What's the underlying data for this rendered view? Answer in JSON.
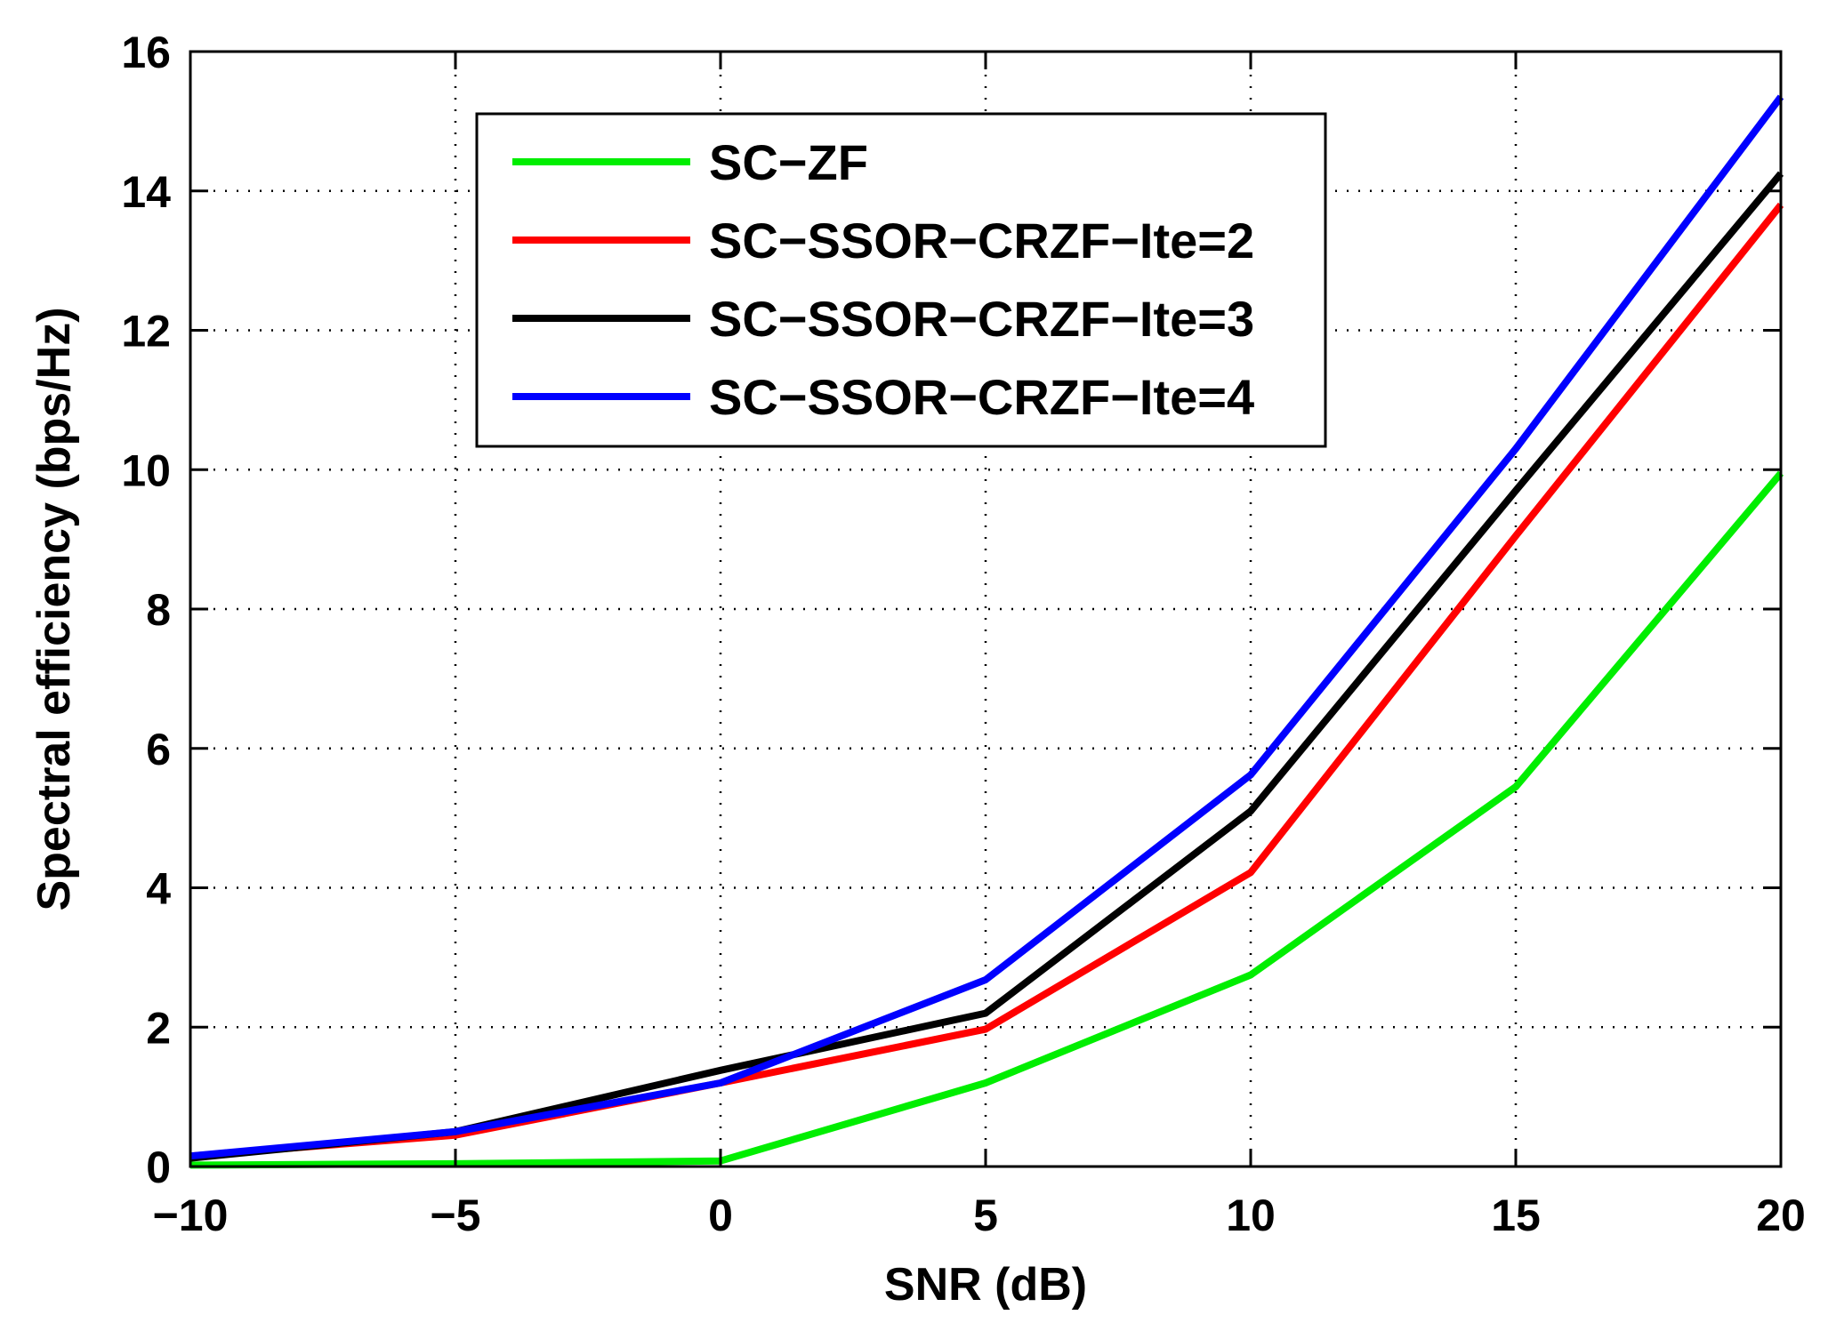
{
  "chart_data": {
    "type": "line",
    "title": "",
    "xlabel": "SNR (dB)",
    "ylabel": "Spectral efficiency (bps/Hz)",
    "xlim": [
      -10,
      20
    ],
    "ylim": [
      0,
      16
    ],
    "xticks": [
      -10,
      -5,
      0,
      5,
      10,
      15,
      20
    ],
    "yticks": [
      0,
      2,
      4,
      6,
      8,
      10,
      12,
      14,
      16
    ],
    "xtick_labels": [
      "−10",
      "−5",
      "0",
      "5",
      "10",
      "15",
      "20"
    ],
    "ytick_labels": [
      "0",
      "2",
      "4",
      "6",
      "8",
      "10",
      "12",
      "14",
      "16"
    ],
    "grid": true,
    "legend_position": "top-center",
    "x": [
      -10,
      -5,
      0,
      5,
      10,
      15,
      20
    ],
    "series": [
      {
        "name": "SC−ZF",
        "color": "#00ee00",
        "values": [
          0.02,
          0.04,
          0.08,
          1.2,
          2.75,
          5.45,
          9.95
        ]
      },
      {
        "name": "SC−SSOR−CRZF−Ite=2",
        "color": "#ff0000",
        "values": [
          0.15,
          0.45,
          1.2,
          1.97,
          4.22,
          9.05,
          13.8
        ]
      },
      {
        "name": "SC−SSOR−CRZF−Ite=3",
        "color": "#000000",
        "values": [
          0.12,
          0.5,
          1.38,
          2.2,
          5.1,
          9.7,
          14.25
        ]
      },
      {
        "name": "SC−SSOR−CRZF−Ite=4",
        "color": "#0000ff",
        "values": [
          0.15,
          0.5,
          1.2,
          2.68,
          5.62,
          10.3,
          15.35
        ]
      }
    ]
  }
}
